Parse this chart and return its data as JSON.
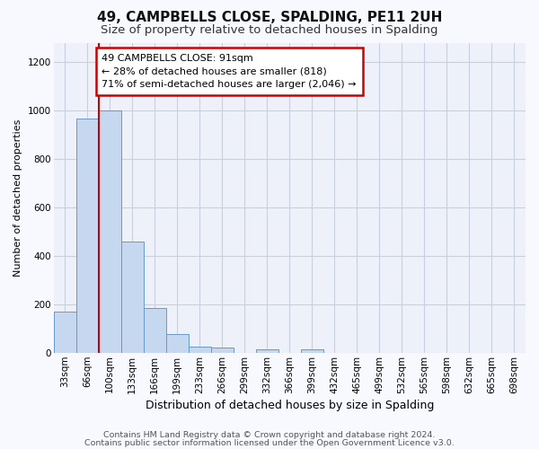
{
  "title": "49, CAMPBELLS CLOSE, SPALDING, PE11 2UH",
  "subtitle": "Size of property relative to detached houses in Spalding",
  "xlabel": "Distribution of detached houses by size in Spalding",
  "ylabel": "Number of detached properties",
  "bin_labels": [
    "33sqm",
    "66sqm",
    "100sqm",
    "133sqm",
    "166sqm",
    "199sqm",
    "233sqm",
    "266sqm",
    "299sqm",
    "332sqm",
    "366sqm",
    "399sqm",
    "432sqm",
    "465sqm",
    "499sqm",
    "532sqm",
    "565sqm",
    "598sqm",
    "632sqm",
    "665sqm",
    "698sqm"
  ],
  "bar_values": [
    170,
    965,
    1000,
    460,
    185,
    75,
    25,
    20,
    0,
    15,
    0,
    12,
    0,
    0,
    0,
    0,
    0,
    0,
    0,
    0,
    0
  ],
  "bar_color": "#c5d8f0",
  "bar_edge_color": "#6699cc",
  "vline_x": 2.0,
  "vline_color": "#cc0000",
  "ylim": [
    0,
    1280
  ],
  "yticks": [
    0,
    200,
    400,
    600,
    800,
    1000,
    1200
  ],
  "annotation_text": "49 CAMPBELLS CLOSE: 91sqm\n← 28% of detached houses are smaller (818)\n71% of semi-detached houses are larger (2,046) →",
  "annotation_box_facecolor": "#ffffff",
  "annotation_box_edgecolor": "#cc0000",
  "footer_line1": "Contains HM Land Registry data © Crown copyright and database right 2024.",
  "footer_line2": "Contains public sector information licensed under the Open Government Licence v3.0.",
  "fig_facecolor": "#f8f9ff",
  "plot_facecolor": "#eef1fa",
  "grid_color": "#c8cfe0",
  "title_fontsize": 11,
  "subtitle_fontsize": 9.5,
  "xlabel_fontsize": 9,
  "ylabel_fontsize": 8,
  "tick_fontsize": 7.5,
  "footer_fontsize": 6.8,
  "annot_fontsize": 8
}
